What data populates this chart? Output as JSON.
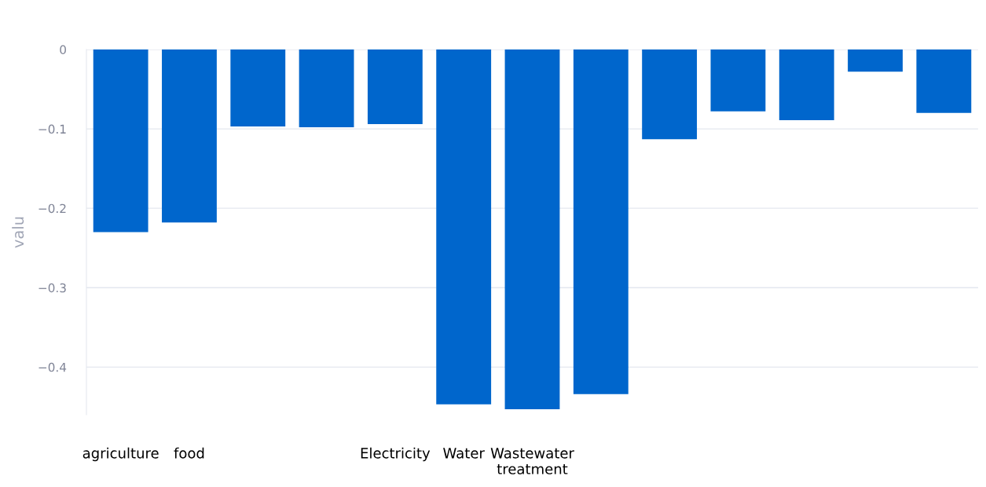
{
  "chart_data": {
    "type": "bar",
    "ylabel": "valu",
    "categories": [
      "agriculture",
      "food",
      null,
      null,
      "Electricity",
      "Water",
      "Wastewater\ntreatment",
      null,
      null,
      null,
      null,
      null,
      null
    ],
    "values": [
      -0.23,
      -0.218,
      -0.097,
      -0.098,
      -0.094,
      -0.447,
      -0.453,
      -0.434,
      -0.113,
      -0.078,
      -0.089,
      -0.028,
      -0.08
    ],
    "color": "#0066cc",
    "ylim": [
      -0.46,
      0
    ],
    "yticks": [
      {
        "value": 0,
        "label": "0"
      },
      {
        "value": -0.1,
        "label": "−0.1"
      },
      {
        "value": -0.2,
        "label": "−0.2"
      },
      {
        "value": -0.3,
        "label": "−0.3"
      },
      {
        "value": -0.4,
        "label": "−0.4"
      }
    ],
    "grid": "y"
  }
}
